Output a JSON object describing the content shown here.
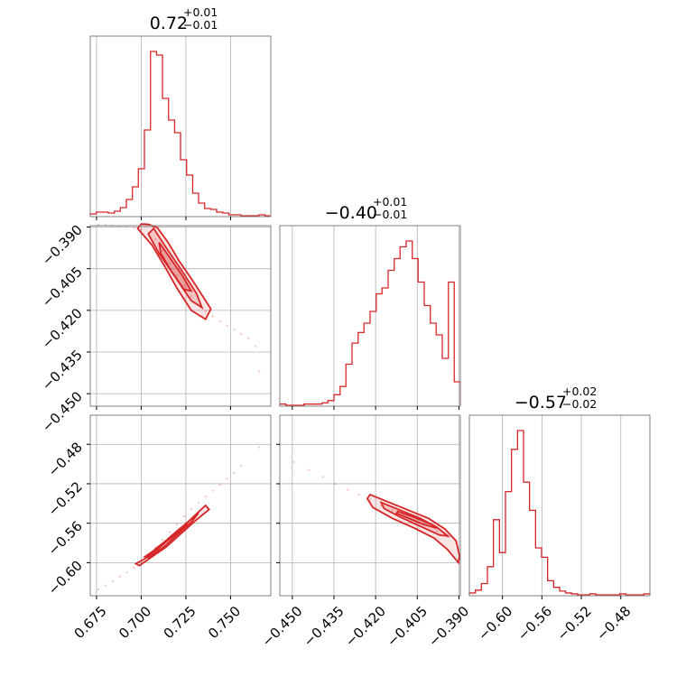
{
  "chart_data": {
    "type": "corner",
    "color": "#d62728",
    "parameters": [
      {
        "range": [
          0.6715,
          0.7725
        ],
        "ticks": [
          "0.675",
          "0.700",
          "0.725",
          "0.750"
        ],
        "tick_values": [
          0.675,
          0.7,
          0.725,
          0.75
        ]
      },
      {
        "range": [
          -0.4545,
          -0.3895
        ],
        "ticks": [
          "−0.450",
          "−0.435",
          "−0.420",
          "−0.405",
          "−0.390"
        ],
        "tick_values": [
          -0.45,
          -0.435,
          -0.42,
          -0.405,
          -0.39
        ]
      },
      {
        "range": [
          -0.6335,
          -0.4505
        ],
        "ticks": [
          "−0.60",
          "−0.56",
          "−0.52",
          "−0.48"
        ],
        "tick_values": [
          -0.6,
          -0.56,
          -0.52,
          -0.48
        ]
      }
    ],
    "titles": [
      {
        "main": "0.72",
        "plus": "+0.01",
        "minus": "−0.01"
      },
      {
        "main": "−0.40",
        "plus": "+0.01",
        "minus": "−0.01"
      },
      {
        "main": "−0.57",
        "plus": "+0.02",
        "minus": "−0.02"
      }
    ],
    "histograms": [
      {
        "edges": [
          0.6715,
          0.6749,
          0.6782,
          0.6816,
          0.685,
          0.6883,
          0.6917,
          0.6951,
          0.6984,
          0.7018,
          0.7052,
          0.7086,
          0.7119,
          0.7153,
          0.7187,
          0.722,
          0.7254,
          0.7288,
          0.7321,
          0.7355,
          0.7389,
          0.7422,
          0.7456,
          0.749,
          0.7523,
          0.7557,
          0.7591,
          0.7624,
          0.7658,
          0.7692,
          0.7725
        ],
        "counts": [
          2,
          4,
          4,
          3,
          5,
          9,
          18,
          32,
          52,
          95,
          182,
          178,
          130,
          106,
          92,
          62,
          45,
          25,
          14,
          8,
          7,
          4,
          3,
          1,
          1,
          0,
          0,
          0,
          1,
          0
        ]
      },
      {
        "edges": [
          -0.4545,
          -0.4523,
          -0.4502,
          -0.448,
          -0.4458,
          -0.4437,
          -0.4415,
          -0.4393,
          -0.4372,
          -0.435,
          -0.4328,
          -0.4307,
          -0.4285,
          -0.4263,
          -0.4242,
          -0.422,
          -0.4198,
          -0.4177,
          -0.4155,
          -0.4133,
          -0.4112,
          -0.409,
          -0.4068,
          -0.4047,
          -0.4025,
          -0.4003,
          -0.3982,
          -0.396,
          -0.3938,
          -0.3917,
          -0.3895
        ],
        "counts": [
          1,
          0,
          0,
          0,
          1,
          1,
          1,
          2,
          4,
          9,
          16,
          35,
          53,
          62,
          70,
          80,
          95,
          100,
          115,
          125,
          135,
          140,
          125,
          105,
          85,
          70,
          60,
          40,
          105,
          20
        ]
      },
      {
        "edges": [
          -0.6335,
          -0.6274,
          -0.6213,
          -0.6152,
          -0.6091,
          -0.603,
          -0.5969,
          -0.5908,
          -0.5847,
          -0.5786,
          -0.5725,
          -0.5664,
          -0.5603,
          -0.5542,
          -0.5481,
          -0.542,
          -0.5359,
          -0.5298,
          -0.5237,
          -0.5176,
          -0.5115,
          -0.5054,
          -0.4993,
          -0.4932,
          -0.4871,
          -0.481,
          -0.4749,
          -0.4688,
          -0.4627,
          -0.4566,
          -0.4505
        ],
        "counts": [
          2,
          5,
          12,
          30,
          80,
          45,
          110,
          155,
          175,
          120,
          90,
          50,
          40,
          15,
          8,
          4,
          2,
          1,
          0,
          0,
          1,
          0,
          0,
          0,
          0,
          1,
          0,
          0,
          0,
          1
        ]
      }
    ],
    "scatter_2d": [
      {
        "x_param": 0,
        "y_param": 1,
        "points": [
          [
            0.676,
            -0.3892
          ],
          [
            0.68,
            -0.3893
          ],
          [
            0.684,
            -0.3895
          ],
          [
            0.688,
            -0.3897
          ],
          [
            0.692,
            -0.3899
          ],
          [
            0.696,
            -0.3902
          ],
          [
            0.7,
            -0.3908
          ],
          [
            0.704,
            -0.3922
          ],
          [
            0.708,
            -0.3945
          ],
          [
            0.712,
            -0.3985
          ],
          [
            0.716,
            -0.403
          ],
          [
            0.72,
            -0.4075
          ],
          [
            0.724,
            -0.411
          ],
          [
            0.728,
            -0.415
          ],
          [
            0.732,
            -0.418
          ],
          [
            0.736,
            -0.4205
          ],
          [
            0.74,
            -0.4222
          ],
          [
            0.744,
            -0.424
          ],
          [
            0.748,
            -0.4255
          ],
          [
            0.752,
            -0.427
          ],
          [
            0.756,
            -0.4285
          ],
          [
            0.76,
            -0.43
          ],
          [
            0.764,
            -0.433
          ],
          [
            0.766,
            -0.442
          ]
        ],
        "contours": [
          {
            "level": 0.9,
            "path": [
              [
                0.704,
                -0.389
              ],
              [
                0.709,
                -0.3902
              ],
              [
                0.715,
                -0.3955
              ],
              [
                0.721,
                -0.402
              ],
              [
                0.728,
                -0.4085
              ],
              [
                0.734,
                -0.4145
              ],
              [
                0.739,
                -0.4195
              ],
              [
                0.736,
                -0.4232
              ],
              [
                0.728,
                -0.42
              ],
              [
                0.72,
                -0.412
              ],
              [
                0.713,
                -0.404
              ],
              [
                0.706,
                -0.3965
              ],
              [
                0.698,
                -0.3905
              ],
              [
                0.7,
                -0.3889
              ]
            ]
          },
          {
            "level": 0.6,
            "path": [
              [
                0.707,
                -0.3905
              ],
              [
                0.713,
                -0.3965
              ],
              [
                0.722,
                -0.405
              ],
              [
                0.731,
                -0.414
              ],
              [
                0.734,
                -0.419
              ],
              [
                0.728,
                -0.4165
              ],
              [
                0.719,
                -0.408
              ],
              [
                0.71,
                -0.3995
              ],
              [
                0.704,
                -0.3925
              ]
            ]
          },
          {
            "level": 0.3,
            "path": [
              [
                0.71,
                -0.3955
              ],
              [
                0.716,
                -0.401
              ],
              [
                0.723,
                -0.4075
              ],
              [
                0.728,
                -0.413
              ],
              [
                0.724,
                -0.4125
              ],
              [
                0.717,
                -0.406
              ],
              [
                0.711,
                -0.3995
              ]
            ]
          }
        ]
      },
      {
        "x_param": 0,
        "y_param": 2,
        "points": [
          [
            0.676,
            -0.627
          ],
          [
            0.68,
            -0.623
          ],
          [
            0.684,
            -0.619
          ],
          [
            0.688,
            -0.614
          ],
          [
            0.692,
            -0.61
          ],
          [
            0.696,
            -0.605
          ],
          [
            0.7,
            -0.599
          ],
          [
            0.704,
            -0.592
          ],
          [
            0.708,
            -0.585
          ],
          [
            0.712,
            -0.577
          ],
          [
            0.716,
            -0.569
          ],
          [
            0.72,
            -0.561
          ],
          [
            0.724,
            -0.553
          ],
          [
            0.728,
            -0.546
          ],
          [
            0.732,
            -0.539
          ],
          [
            0.736,
            -0.533
          ],
          [
            0.74,
            -0.527
          ],
          [
            0.744,
            -0.521
          ],
          [
            0.748,
            -0.515
          ],
          [
            0.752,
            -0.509
          ],
          [
            0.756,
            -0.502
          ],
          [
            0.766,
            -0.483
          ]
        ],
        "contours": [
          {
            "level": 0.9,
            "path": [
              [
                0.697,
                -0.601
              ],
              [
                0.702,
                -0.596
              ],
              [
                0.71,
                -0.585
              ],
              [
                0.718,
                -0.572
              ],
              [
                0.726,
                -0.559
              ],
              [
                0.733,
                -0.547
              ],
              [
                0.736,
                -0.542
              ],
              [
                0.738,
                -0.546
              ],
              [
                0.73,
                -0.558
              ],
              [
                0.722,
                -0.571
              ],
              [
                0.714,
                -0.584
              ],
              [
                0.706,
                -0.594
              ],
              [
                0.699,
                -0.603
              ]
            ]
          },
          {
            "level": 0.6,
            "path": [
              [
                0.702,
                -0.594
              ],
              [
                0.71,
                -0.584
              ],
              [
                0.718,
                -0.571
              ],
              [
                0.726,
                -0.559
              ],
              [
                0.732,
                -0.55
              ],
              [
                0.728,
                -0.559
              ],
              [
                0.72,
                -0.572
              ],
              [
                0.712,
                -0.585
              ],
              [
                0.704,
                -0.595
              ]
            ]
          },
          {
            "level": 0.3,
            "path": [
              [
                0.708,
                -0.586
              ],
              [
                0.715,
                -0.576
              ],
              [
                0.722,
                -0.565
              ],
              [
                0.726,
                -0.56
              ],
              [
                0.721,
                -0.569
              ],
              [
                0.713,
                -0.58
              ],
              [
                0.709,
                -0.587
              ]
            ]
          }
        ]
      },
      {
        "x_param": 1,
        "y_param": 2,
        "points": [
          [
            -0.4495,
            -0.498
          ],
          [
            -0.444,
            -0.506
          ],
          [
            -0.439,
            -0.513
          ],
          [
            -0.4345,
            -0.52
          ],
          [
            -0.43,
            -0.526
          ],
          [
            -0.426,
            -0.531
          ],
          [
            -0.422,
            -0.536
          ],
          [
            -0.418,
            -0.542
          ],
          [
            -0.414,
            -0.547
          ],
          [
            -0.41,
            -0.552
          ],
          [
            -0.406,
            -0.557
          ],
          [
            -0.402,
            -0.562
          ],
          [
            -0.398,
            -0.568
          ],
          [
            -0.394,
            -0.574
          ],
          [
            -0.391,
            -0.58
          ],
          [
            -0.3898,
            -0.598
          ]
        ],
        "contours": [
          {
            "level": 0.9,
            "path": [
              [
                -0.422,
                -0.531
              ],
              [
                -0.415,
                -0.539
              ],
              [
                -0.408,
                -0.547
              ],
              [
                -0.401,
                -0.555
              ],
              [
                -0.395,
                -0.566
              ],
              [
                -0.391,
                -0.578
              ],
              [
                -0.3898,
                -0.593
              ],
              [
                -0.3902,
                -0.6
              ],
              [
                -0.394,
                -0.587
              ],
              [
                -0.399,
                -0.575
              ],
              [
                -0.406,
                -0.565
              ],
              [
                -0.414,
                -0.555
              ],
              [
                -0.421,
                -0.544
              ],
              [
                -0.423,
                -0.535
              ]
            ]
          },
          {
            "level": 0.6,
            "path": [
              [
                -0.418,
                -0.539
              ],
              [
                -0.411,
                -0.547
              ],
              [
                -0.404,
                -0.555
              ],
              [
                -0.398,
                -0.564
              ],
              [
                -0.394,
                -0.573
              ],
              [
                -0.397,
                -0.572
              ],
              [
                -0.404,
                -0.563
              ],
              [
                -0.411,
                -0.554
              ],
              [
                -0.417,
                -0.545
              ]
            ]
          },
          {
            "level": 0.3,
            "path": [
              [
                -0.412,
                -0.548
              ],
              [
                -0.406,
                -0.554
              ],
              [
                -0.4,
                -0.561
              ],
              [
                -0.398,
                -0.565
              ],
              [
                -0.403,
                -0.561
              ],
              [
                -0.409,
                -0.554
              ],
              [
                -0.4125,
                -0.55
              ]
            ]
          }
        ]
      }
    ]
  }
}
